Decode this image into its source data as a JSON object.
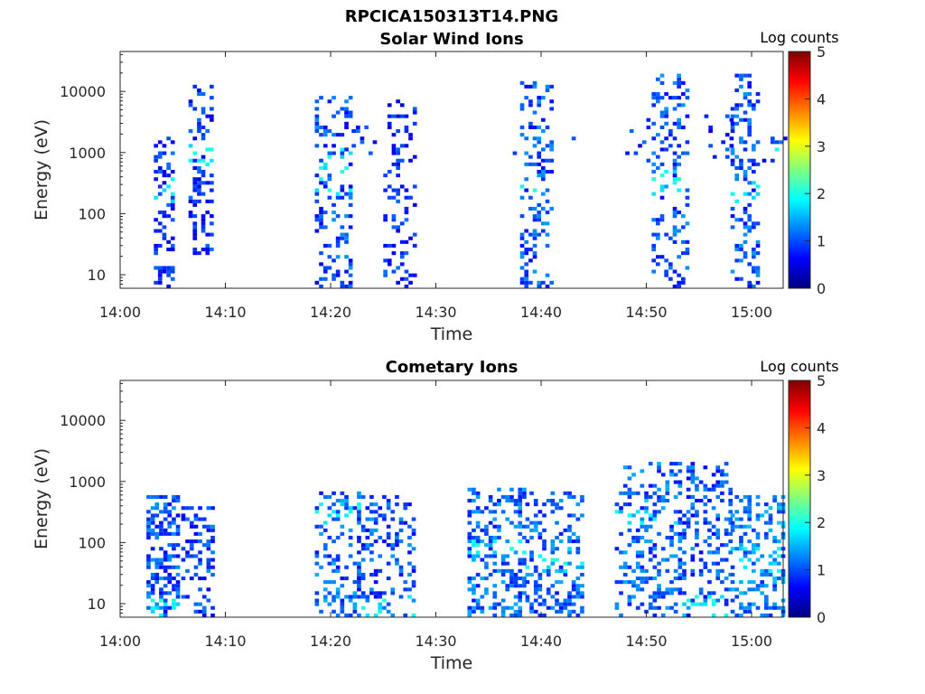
{
  "figure": {
    "title": "RPCICA150313T14.PNG"
  },
  "colors": {
    "colormap": [
      "#00007f",
      "#0000ff",
      "#007fff",
      "#00ffff",
      "#7fff7f",
      "#ffff00",
      "#ff7f00",
      "#ff0000",
      "#7f0000"
    ],
    "axis": "#262626"
  },
  "chart_data": [
    {
      "type": "heatmap",
      "title": "Solar Wind Ions",
      "xlabel": "Time",
      "ylabel": "Energy (eV)",
      "x_scale": "time",
      "y_scale": "log",
      "xlim": [
        "14:00",
        "15:03"
      ],
      "ylim": [
        6,
        45000
      ],
      "x_ticks": [
        "14:00",
        "14:10",
        "14:20",
        "14:30",
        "14:40",
        "14:50",
        "15:00"
      ],
      "y_ticks": [
        10,
        100,
        1000,
        10000
      ],
      "y_tick_labels": [
        "10",
        "100",
        "1000",
        "10000"
      ],
      "colorbar": {
        "label": "Log counts",
        "range": [
          0,
          5
        ],
        "ticks": [
          "0",
          "1",
          "2",
          "3",
          "4",
          "5"
        ]
      },
      "clusters": [
        {
          "t": [
            3.2,
            5.0
          ],
          "e": [
            6,
            2000
          ],
          "density": 0.35,
          "level": 0.8,
          "bright_e": [
            150,
            400
          ]
        },
        {
          "t": [
            6.5,
            8.6
          ],
          "e": [
            20,
            12000
          ],
          "density": 0.35,
          "level": 0.8,
          "bright_e": [
            600,
            1500
          ]
        },
        {
          "t": [
            18.5,
            21.8
          ],
          "e": [
            6,
            8000
          ],
          "density": 0.25,
          "level": 1.0,
          "bright_e": [
            200,
            1200
          ]
        },
        {
          "t": [
            22.0,
            24.5
          ],
          "e": [
            800,
            3000
          ],
          "density": 0.15,
          "level": 0.9,
          "bright_e": [
            0,
            0
          ]
        },
        {
          "t": [
            25.0,
            28.0
          ],
          "e": [
            6,
            8000
          ],
          "density": 0.22,
          "level": 0.8,
          "bright_e": [
            0,
            0
          ]
        },
        {
          "t": [
            36.5,
            37.5
          ],
          "e": [
            600,
            1200
          ],
          "density": 0.1,
          "level": 0.8,
          "bright_e": [
            0,
            0
          ]
        },
        {
          "t": [
            38.0,
            41.0
          ],
          "e": [
            6,
            14000
          ],
          "density": 0.25,
          "level": 1.0,
          "bright_e": [
            200,
            350
          ]
        },
        {
          "t": [
            42.5,
            43.5
          ],
          "e": [
            400,
            2000
          ],
          "density": 0.08,
          "level": 0.8,
          "bright_e": [
            0,
            0
          ]
        },
        {
          "t": [
            48.0,
            50.0
          ],
          "e": [
            600,
            6000
          ],
          "density": 0.1,
          "level": 0.8,
          "bright_e": [
            0,
            0
          ]
        },
        {
          "t": [
            50.5,
            54.0
          ],
          "e": [
            6,
            20000
          ],
          "density": 0.25,
          "level": 1.0,
          "bright_e": [
            200,
            500
          ]
        },
        {
          "t": [
            55.5,
            58.0
          ],
          "e": [
            500,
            4000
          ],
          "density": 0.12,
          "level": 0.8,
          "bright_e": [
            0,
            0
          ]
        },
        {
          "t": [
            58.0,
            60.5
          ],
          "e": [
            6,
            20000
          ],
          "density": 0.28,
          "level": 1.0,
          "bright_e": [
            150,
            350
          ]
        },
        {
          "t": [
            61.0,
            63.0
          ],
          "e": [
            500,
            2000
          ],
          "density": 0.15,
          "level": 0.8,
          "bright_e": [
            900,
            1200
          ]
        }
      ]
    },
    {
      "type": "heatmap",
      "title": "Cometary Ions",
      "xlabel": "Time",
      "ylabel": "Energy (eV)",
      "x_scale": "time",
      "y_scale": "log",
      "xlim": [
        "14:00",
        "15:03"
      ],
      "ylim": [
        6,
        45000
      ],
      "x_ticks": [
        "14:00",
        "14:10",
        "14:20",
        "14:30",
        "14:40",
        "14:50",
        "15:00"
      ],
      "y_ticks": [
        10,
        100,
        1000,
        10000
      ],
      "y_tick_labels": [
        "10",
        "100",
        "1000",
        "10000"
      ],
      "colorbar": {
        "label": "Log counts",
        "range": [
          0,
          5
        ],
        "ticks": [
          "0",
          "1",
          "2",
          "3",
          "4",
          "5"
        ]
      },
      "clusters": [
        {
          "t": [
            2.5,
            5.5
          ],
          "e": [
            6,
            600
          ],
          "density": 0.45,
          "level": 1.0,
          "bright_e": [
            6,
            14
          ]
        },
        {
          "t": [
            5.8,
            8.8
          ],
          "e": [
            6,
            400
          ],
          "density": 0.35,
          "level": 0.9,
          "bright_e": [
            0,
            0
          ]
        },
        {
          "t": [
            18.5,
            22.5
          ],
          "e": [
            6,
            700
          ],
          "density": 0.3,
          "level": 1.1,
          "bright_e": [
            200,
            500
          ]
        },
        {
          "t": [
            22.5,
            28.0
          ],
          "e": [
            6,
            600
          ],
          "density": 0.28,
          "level": 1.0,
          "bright_e": [
            6,
            14
          ]
        },
        {
          "t": [
            33.0,
            38.5
          ],
          "e": [
            6,
            800
          ],
          "density": 0.32,
          "level": 1.1,
          "bright_e": [
            60,
            120
          ]
        },
        {
          "t": [
            38.5,
            44.0
          ],
          "e": [
            6,
            700
          ],
          "density": 0.3,
          "level": 1.1,
          "bright_e": [
            30,
            100
          ]
        },
        {
          "t": [
            47.0,
            53.0
          ],
          "e": [
            6,
            2000
          ],
          "density": 0.32,
          "level": 1.1,
          "bright_e": [
            200,
            500
          ]
        },
        {
          "t": [
            53.0,
            58.0
          ],
          "e": [
            6,
            2000
          ],
          "density": 0.28,
          "level": 1.0,
          "bright_e": [
            6,
            14
          ]
        },
        {
          "t": [
            58.0,
            63.0
          ],
          "e": [
            6,
            600
          ],
          "density": 0.35,
          "level": 1.2,
          "bright_e": [
            30,
            80
          ]
        }
      ]
    }
  ]
}
